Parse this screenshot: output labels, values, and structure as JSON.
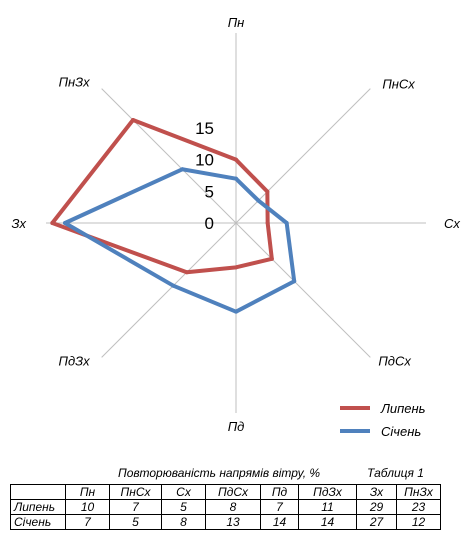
{
  "chart_data": {
    "type": "radar",
    "directions": [
      "Пн",
      "ПнСх",
      "Сх",
      "ПдСх",
      "Пд",
      "ПдЗх",
      "Зх",
      "ПнЗх"
    ],
    "radial_ticks": [
      "0",
      "5",
      "10",
      "15"
    ],
    "rmax": 30,
    "grid": false,
    "legend_position": "bottom-right",
    "series": [
      {
        "name": "Липень",
        "color": "#c0504d",
        "values": [
          10,
          7,
          5,
          8,
          7,
          11,
          29,
          23
        ]
      },
      {
        "name": "Січень",
        "color": "#4f81bd",
        "values": [
          7,
          5,
          8,
          13,
          14,
          14,
          27,
          12
        ]
      }
    ]
  },
  "caption": {
    "title": "Повторюваність напрямів вітру, %",
    "table_label": "Таблиця 1"
  },
  "table": {
    "headers": [
      "",
      "Пн",
      "ПнСх",
      "Сх",
      "ПдСх",
      "Пд",
      "ПдЗх",
      "Зх",
      "ПнЗх"
    ],
    "rows": [
      [
        "Липень",
        "10",
        "7",
        "5",
        "8",
        "7",
        "11",
        "29",
        "23"
      ],
      [
        "Січень",
        "7",
        "5",
        "8",
        "13",
        "14",
        "14",
        "27",
        "12"
      ]
    ]
  }
}
